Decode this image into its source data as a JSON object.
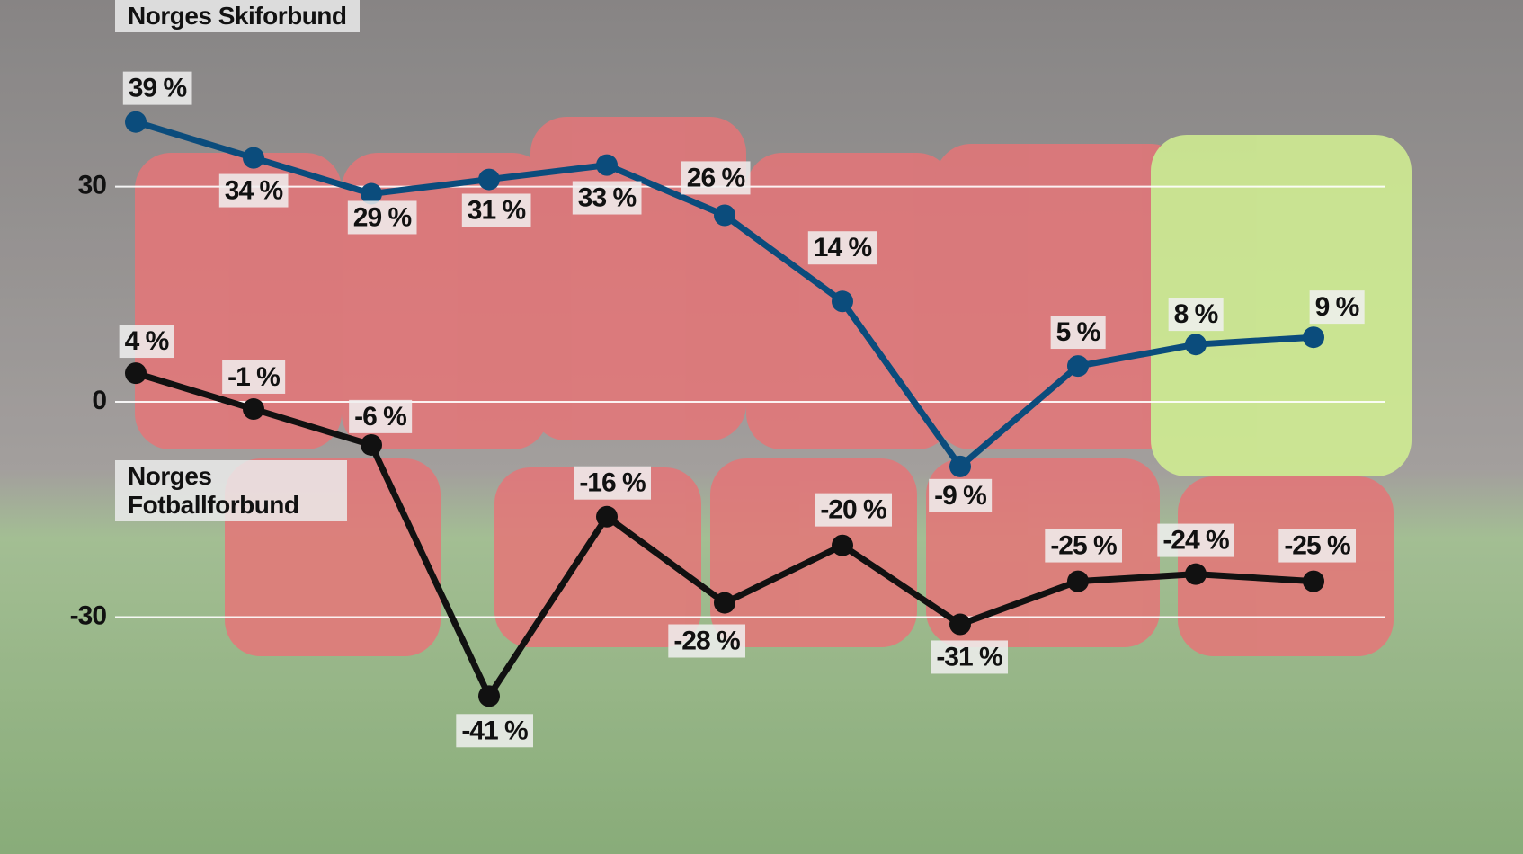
{
  "chart_data": {
    "type": "line",
    "categories": [
      null,
      null,
      null,
      null,
      null,
      null,
      null,
      null,
      null,
      null,
      null
    ],
    "series": [
      {
        "name": "Norges Skiforbund",
        "color": "#0b4c7c",
        "values": [
          39,
          34,
          29,
          31,
          33,
          26,
          14,
          -9,
          5,
          8,
          9
        ],
        "value_labels": [
          "39 %",
          "34 %",
          "29 %",
          "31 %",
          "33 %",
          "26 %",
          "14 %",
          "-9 %",
          "5 %",
          "8 %",
          "9 %"
        ]
      },
      {
        "name": "Norges Fotballforbund",
        "color": "#111111",
        "values": [
          4,
          -1,
          -6,
          -41,
          -16,
          -28,
          -20,
          -31,
          -25,
          -24,
          -25
        ],
        "value_labels": [
          "4 %",
          "-1 %",
          "-6 %",
          "-41 %",
          "-16 %",
          "-28 %",
          "-20 %",
          "-31 %",
          "-25 %",
          "-24 %",
          "-25 %"
        ]
      }
    ],
    "ylim": [
      -63,
      56
    ],
    "yticks": [
      -30,
      0,
      30
    ],
    "grid": true
  }
}
